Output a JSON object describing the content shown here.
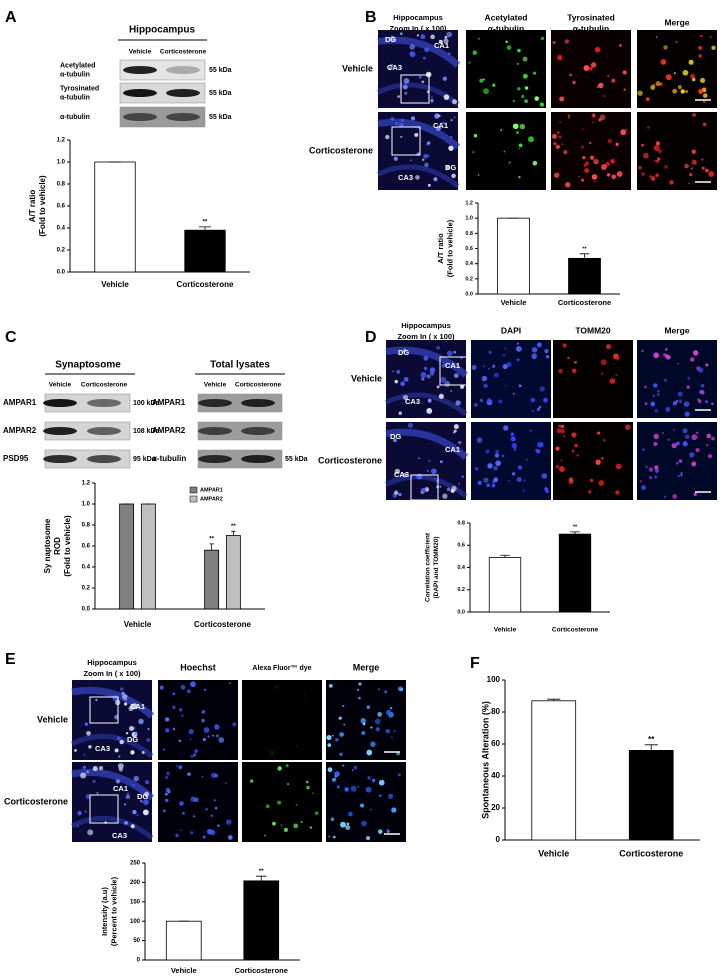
{
  "panels": [
    {
      "letter": "A",
      "title": "Hippocampus",
      "columns": [
        "Vehicle",
        "Corticosterone"
      ],
      "blots": [
        {
          "label": [
            "Acetylated",
            "α-tubulin"
          ],
          "size": "55 kDa"
        },
        {
          "label": [
            "Tyrosinated",
            "α-tubulin"
          ],
          "size": "55 kDa"
        },
        {
          "label": [
            "α-tubulin"
          ],
          "size": "55 kDa"
        }
      ]
    },
    {
      "letter": "B",
      "column_headers": [
        [
          "Hippocampus",
          "Zoom In ( x 100)"
        ],
        [
          "Acetylated",
          "α-tubulin"
        ],
        [
          "Tyrosinated",
          "α-tubulin"
        ],
        [
          "Merge"
        ]
      ],
      "row_labels": [
        "Vehicle",
        "Corticosterone"
      ],
      "region_labels": [
        "DG",
        "CA1",
        "CA3",
        "CA1",
        "DG",
        "CA3"
      ]
    },
    {
      "letter": "C",
      "blot_groups": [
        {
          "title": "Synaptosome",
          "columns": [
            "Vehicle",
            "Corticosterone"
          ],
          "blots": [
            {
              "label": "AMPAR1",
              "size": "100 kDa"
            },
            {
              "label": "AMPAR2",
              "size": "108 kDa"
            },
            {
              "label": "PSD95",
              "size": "95 kDa"
            }
          ]
        },
        {
          "title": "Total lysates",
          "columns": [
            "Vehicle",
            "Corticosterone"
          ],
          "blots": [
            {
              "label": "AMPAR1"
            },
            {
              "label": "AMPAR2"
            },
            {
              "label": "α-tubulin",
              "size": "55 kDa"
            }
          ]
        }
      ]
    },
    {
      "letter": "D",
      "column_headers": [
        [
          "Hippocampus",
          "Zoom In ( x 100)"
        ],
        [
          "DAPI"
        ],
        [
          "TOMM20"
        ],
        [
          "Merge"
        ]
      ],
      "row_labels": [
        "Vehicle",
        "Corticosterone"
      ],
      "region_labels": [
        "DG",
        "CA1",
        "CA3",
        "DG",
        "CA1",
        "CA3"
      ]
    },
    {
      "letter": "E",
      "column_headers": [
        [
          "Hippocampus",
          "Zoom In ( x 100)"
        ],
        [
          "Hoechst"
        ],
        [
          "Alexa Fluor™ dye"
        ],
        [
          "Merge"
        ]
      ],
      "row_labels": [
        "Vehicle",
        "Corticosterone"
      ],
      "region_labels": [
        "CA1",
        "DG",
        "CA3",
        "CA1",
        "DG",
        "CA3"
      ]
    },
    {
      "letter": "F"
    }
  ],
  "chart_data": [
    {
      "type": "bar",
      "ylabel": [
        "A/T  ratio",
        "(Fold to vehicle)"
      ],
      "categories": [
        "Vehicle",
        "Corticosterone"
      ],
      "values": [
        1.0,
        0.38
      ],
      "errors": [
        0,
        0.03
      ],
      "colors": [
        "#ffffff",
        "#000000"
      ],
      "annotations": [
        null,
        "**"
      ],
      "ylim": [
        0,
        1.2
      ],
      "yticks": [
        {
          "value": 0,
          "label": "0.0"
        },
        {
          "value": 0.2,
          "label": "0.2"
        },
        {
          "value": 0.4,
          "label": "0.4"
        },
        {
          "value": 0.6,
          "label": "0.6"
        },
        {
          "value": 0.8,
          "label": "0.8"
        },
        {
          "value": 1.0,
          "label": "1.0"
        },
        {
          "value": 1.2,
          "label": "1.2"
        }
      ]
    },
    {
      "type": "bar",
      "ylabel": [
        "A/T  ratio",
        "(Fold to vehicle)"
      ],
      "categories": [
        "Vehicle",
        "Corticosterone"
      ],
      "values": [
        1.0,
        0.47
      ],
      "errors": [
        0,
        0.06
      ],
      "colors": [
        "#ffffff",
        "#000000"
      ],
      "annotations": [
        null,
        "**"
      ],
      "ylim": [
        0,
        1.2
      ],
      "yticks": [
        {
          "value": 0,
          "label": "0.0"
        },
        {
          "value": 0.2,
          "label": "0.2"
        },
        {
          "value": 0.4,
          "label": "0.4"
        },
        {
          "value": 0.6,
          "label": "0.6"
        },
        {
          "value": 0.8,
          "label": "0.8"
        },
        {
          "value": 1.0,
          "label": "1.0"
        },
        {
          "value": 1.2,
          "label": "1.2"
        }
      ]
    },
    {
      "type": "bar",
      "ylabel": [
        "Sy naptosome",
        "ROD",
        "(Fold to vehicle)"
      ],
      "categories": [
        "Vehicle",
        "Corticosterone"
      ],
      "series": [
        {
          "name": "AMPAR1",
          "color": "#808080",
          "values": [
            1.0,
            0.56
          ],
          "errors": [
            0,
            0.06
          ],
          "annotations": [
            null,
            "**"
          ]
        },
        {
          "name": "AMPAR2",
          "color": "#c0c0c0",
          "values": [
            1.0,
            0.7
          ],
          "errors": [
            0,
            0.04
          ],
          "annotations": [
            null,
            "**"
          ]
        }
      ],
      "ylim": [
        0,
        1.2
      ],
      "yticks": [
        {
          "value": 0,
          "label": "0.0"
        },
        {
          "value": 0.2,
          "label": "0.2"
        },
        {
          "value": 0.4,
          "label": "0.4"
        },
        {
          "value": 0.6,
          "label": "0.6"
        },
        {
          "value": 0.8,
          "label": "0.8"
        },
        {
          "value": 1.0,
          "label": "1.0"
        },
        {
          "value": 1.2,
          "label": "1.2"
        }
      ]
    },
    {
      "type": "bar",
      "ylabel": [
        "Correlation coefficient",
        "(DAPI and TOMM20)"
      ],
      "categories": [
        "Vehicle",
        "Corticosterone"
      ],
      "values": [
        0.49,
        0.7
      ],
      "errors": [
        0.02,
        0.02
      ],
      "colors": [
        "#ffffff",
        "#000000"
      ],
      "annotations": [
        null,
        "**"
      ],
      "ylim": [
        0,
        0.8
      ],
      "yticks": [
        {
          "value": 0,
          "label": "0.0"
        },
        {
          "value": 0.2,
          "label": "0.2"
        },
        {
          "value": 0.4,
          "label": "0.4"
        },
        {
          "value": 0.6,
          "label": "0.6"
        },
        {
          "value": 0.8,
          "label": "0.8"
        }
      ]
    },
    {
      "type": "bar",
      "ylabel": [
        "Intensity (a.u)",
        "(Percent to vehicle)"
      ],
      "categories": [
        "Vehicle",
        "Corticosterone"
      ],
      "values": [
        100,
        204
      ],
      "errors": [
        0,
        12
      ],
      "colors": [
        "#ffffff",
        "#000000"
      ],
      "annotations": [
        null,
        "**"
      ],
      "ylim": [
        0,
        250
      ],
      "yticks": [
        0,
        50,
        100,
        150,
        200,
        250
      ]
    },
    {
      "type": "bar",
      "ylabel": [
        "Spontaneous Alteration (%)"
      ],
      "categories": [
        "Vehicle",
        "Corticosterone"
      ],
      "values": [
        87,
        56
      ],
      "errors": [
        1,
        3.5
      ],
      "colors": [
        "#ffffff",
        "#000000"
      ],
      "annotations": [
        null,
        "**"
      ],
      "ylim": [
        0,
        100
      ],
      "yticks": [
        0,
        20,
        40,
        60,
        80,
        100
      ]
    }
  ]
}
